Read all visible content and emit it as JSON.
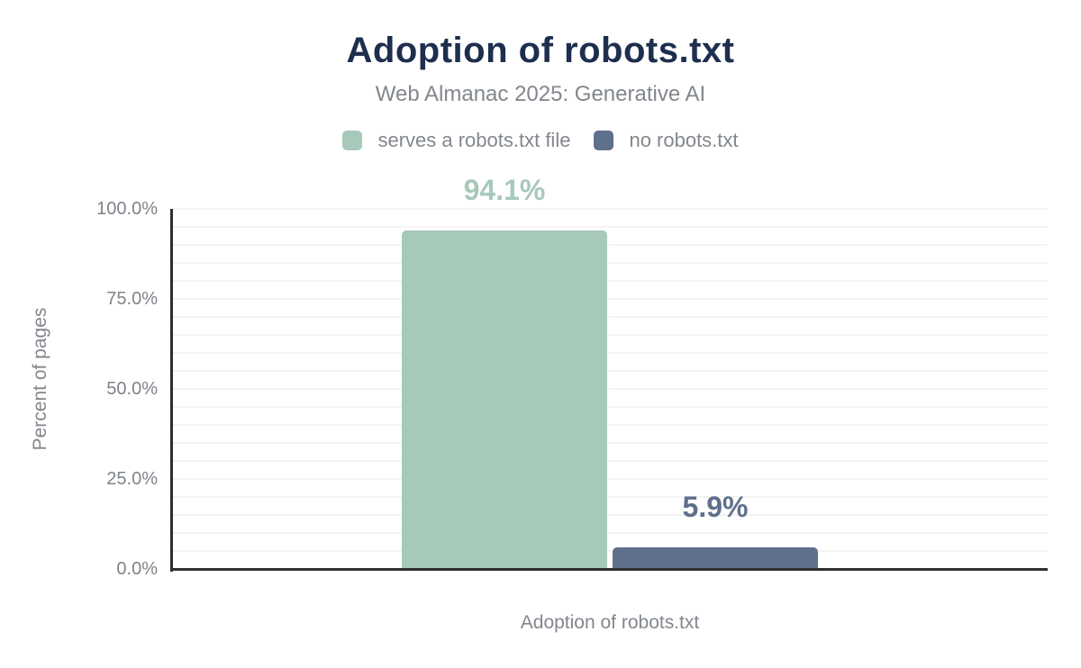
{
  "chart_data": {
    "type": "bar",
    "title": "Adoption of robots.txt",
    "subtitle": "Web Almanac 2025: Generative AI",
    "xlabel": "Adoption of robots.txt",
    "ylabel": "Percent of pages",
    "ylim": [
      0,
      100
    ],
    "minor_grid_step": 5,
    "grid": true,
    "legend_position": "top",
    "yticks": [
      {
        "value": 0,
        "label": "0.0%"
      },
      {
        "value": 25,
        "label": "25.0%"
      },
      {
        "value": 50,
        "label": "50.0%"
      },
      {
        "value": 75,
        "label": "75.0%"
      },
      {
        "value": 100,
        "label": "100.0%"
      }
    ],
    "series": [
      {
        "name": "serves a robots.txt file",
        "value": 94.1,
        "value_label": "94.1%",
        "color": "#a7c9ba"
      },
      {
        "name": "no robots.txt",
        "value": 5.9,
        "value_label": "5.9%",
        "color": "#5f708c"
      }
    ],
    "colors": {
      "title": "#1d2e4e",
      "text": "#82878d",
      "tick_text": "#7e8389",
      "axis": "#2f2f2f",
      "gridline": "#f4f4f4",
      "background": "#ffffff"
    }
  }
}
